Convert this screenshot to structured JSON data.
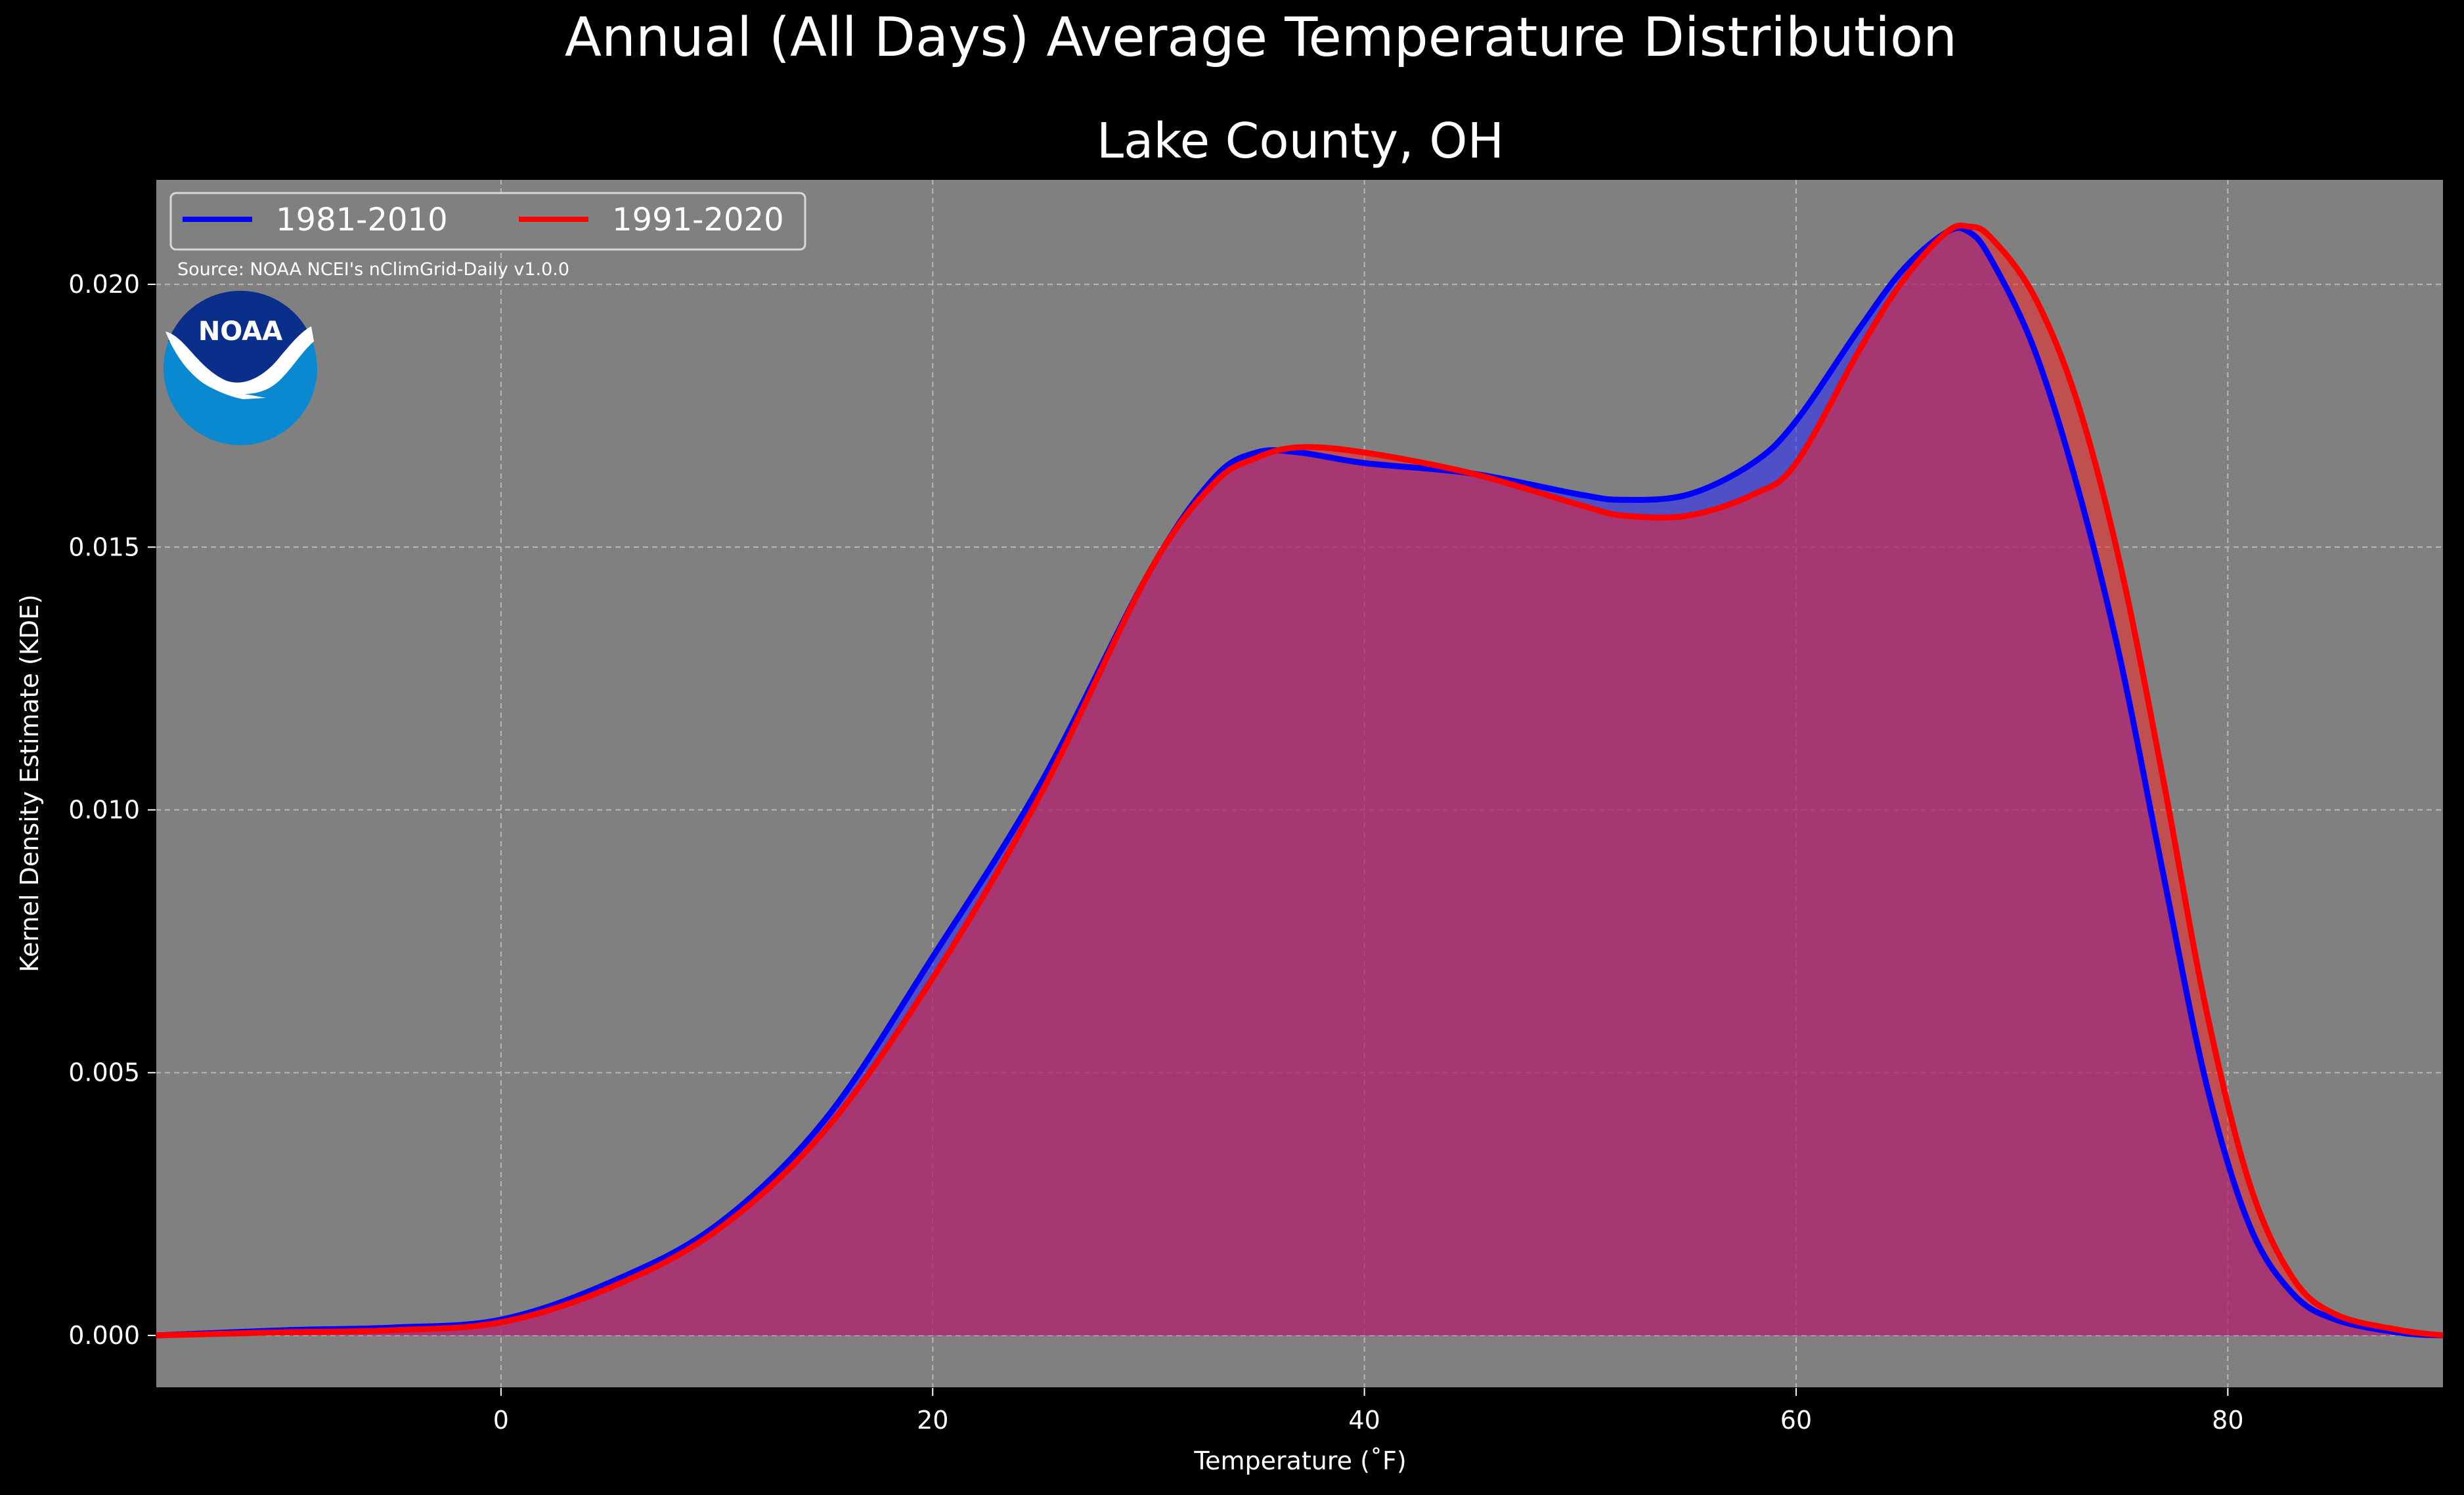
{
  "figure": {
    "suptitle": "Annual (All Days) Average Temperature Distribution",
    "source": "Source: NOAA NCEI's nClimGrid-Daily v1.0.0",
    "logo_text": "NOAA"
  },
  "colors": {
    "background": "#000000",
    "axes_bg": "#808080",
    "grid": "#b8b8b8",
    "text": "#ffffff",
    "series_1981": "#0000ff",
    "series_1991": "#ff0000",
    "overlap_fill": "#9b1d5c",
    "logo_dark": "#0a2f8a",
    "logo_light": "#0a88d0"
  },
  "chart_data": {
    "type": "area",
    "title": "Lake County, OH",
    "xlabel": "Temperature ($^\\circ$F)",
    "xlabel_display": "Temperature (˚F)",
    "ylabel": "Kernel Density Estimate (KDE)",
    "xlim": [
      -16,
      90
    ],
    "ylim": [
      -0.001,
      0.022
    ],
    "xticks": [
      0,
      20,
      40,
      60,
      80
    ],
    "xtick_labels": [
      "0",
      "20",
      "40",
      "60",
      "80"
    ],
    "yticks": [
      0.0,
      0.005,
      0.01,
      0.015,
      0.02
    ],
    "ytick_labels": [
      "0.000",
      "0.005",
      "0.010",
      "0.015",
      "0.020"
    ],
    "grid": true,
    "legend": "top-left",
    "series": [
      {
        "name": "1981-2010",
        "x": [
          -16,
          -10,
          -5,
          0,
          5,
          10,
          15,
          20,
          25,
          30,
          33,
          35,
          37,
          40,
          45,
          50,
          52,
          55,
          58,
          60,
          63,
          65,
          67,
          68,
          69,
          71,
          73,
          75,
          77,
          79,
          81,
          83,
          85,
          88,
          90
        ],
        "y": [
          0.0,
          0.0001,
          0.00015,
          0.0003,
          0.001,
          0.0021,
          0.0041,
          0.0072,
          0.0105,
          0.0145,
          0.0163,
          0.0168,
          0.0168,
          0.0166,
          0.0164,
          0.016,
          0.0159,
          0.016,
          0.0166,
          0.0174,
          0.0192,
          0.0203,
          0.021,
          0.021,
          0.0205,
          0.0188,
          0.0162,
          0.0129,
          0.0088,
          0.0048,
          0.0021,
          0.0008,
          0.0003,
          5e-05,
          0.0
        ]
      },
      {
        "name": "1991-2020",
        "x": [
          -16,
          -10,
          -5,
          0,
          5,
          10,
          15,
          20,
          25,
          30,
          33,
          35,
          37,
          40,
          45,
          50,
          52,
          55,
          58,
          60,
          63,
          65,
          67,
          68,
          69,
          71,
          73,
          75,
          77,
          79,
          81,
          83,
          85,
          88,
          90
        ],
        "y": [
          0.0,
          6e-05,
          0.0001,
          0.00025,
          0.0009,
          0.002,
          0.0039,
          0.0068,
          0.0103,
          0.0145,
          0.0162,
          0.0167,
          0.0169,
          0.0168,
          0.0164,
          0.0158,
          0.0156,
          0.0156,
          0.016,
          0.0166,
          0.0188,
          0.0201,
          0.021,
          0.0211,
          0.0209,
          0.0198,
          0.0178,
          0.0147,
          0.0106,
          0.0062,
          0.0029,
          0.0011,
          0.0004,
          0.0001,
          0.0
        ]
      }
    ]
  }
}
